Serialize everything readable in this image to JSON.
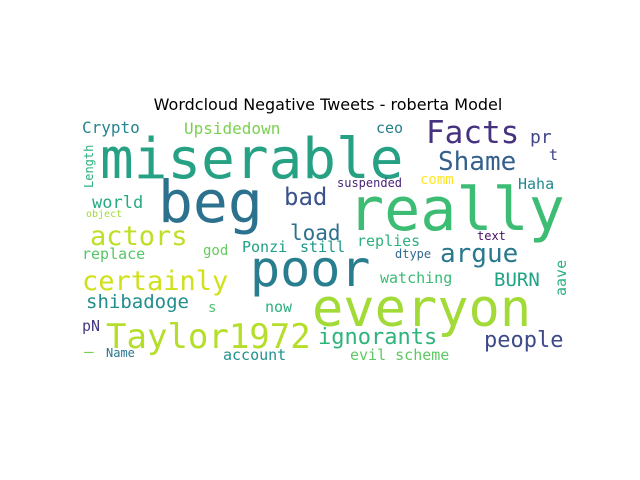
{
  "chart_data": {
    "type": "wordcloud",
    "title": "Wordcloud Negative Tweets - roberta Model",
    "colormap": "viridis",
    "words": [
      {
        "text": "miserable",
        "color": "#26a184"
      },
      {
        "text": "beg",
        "color": "#2c728e"
      },
      {
        "text": "really",
        "color": "#3dbc74"
      },
      {
        "text": "poor",
        "color": "#287d8e"
      },
      {
        "text": "everyon",
        "color": "#a2da37"
      },
      {
        "text": "Taylor1972",
        "color": "#b5de2b"
      },
      {
        "text": "Facts",
        "color": "#46327e"
      },
      {
        "text": "Shame",
        "color": "#35608d"
      },
      {
        "text": "argue",
        "color": "#2a788e"
      },
      {
        "text": "actors",
        "color": "#bddf26"
      },
      {
        "text": "certainly",
        "color": "#d0e11c"
      },
      {
        "text": "bad",
        "color": "#3b528b"
      },
      {
        "text": "load",
        "color": "#2c718e"
      },
      {
        "text": "ignorants",
        "color": "#2fb47c"
      },
      {
        "text": "people",
        "color": "#3e4989"
      },
      {
        "text": "shibadoge",
        "color": "#228d8d"
      },
      {
        "text": "BURN",
        "color": "#20a386"
      },
      {
        "text": "Crypto",
        "color": "#25848e"
      },
      {
        "text": "Upsidedown",
        "color": "#7ad151"
      },
      {
        "text": "ceo",
        "color": "#277f8e"
      },
      {
        "text": "pr",
        "color": "#3f4788"
      },
      {
        "text": "t",
        "color": "#414487"
      },
      {
        "text": "Haha",
        "color": "#23888e"
      },
      {
        "text": "comm",
        "color": "#fde725"
      },
      {
        "text": "suspended",
        "color": "#482576"
      },
      {
        "text": "world",
        "color": "#25ab82"
      },
      {
        "text": "replies",
        "color": "#2db27d"
      },
      {
        "text": "text",
        "color": "#471063"
      },
      {
        "text": "god",
        "color": "#65cb5e"
      },
      {
        "text": "Ponzi",
        "color": "#1fa088"
      },
      {
        "text": "still",
        "color": "#1f968b"
      },
      {
        "text": "replace",
        "color": "#56c667"
      },
      {
        "text": "watching",
        "color": "#3aba76"
      },
      {
        "text": "aave",
        "color": "#2ab07f"
      },
      {
        "text": "Length",
        "color": "#2db27d"
      },
      {
        "text": "object",
        "color": "#a0da39"
      },
      {
        "text": "s",
        "color": "#4ec36b"
      },
      {
        "text": "now",
        "color": "#2ab07f"
      },
      {
        "text": "pN",
        "color": "#443983"
      },
      {
        "text": "dtype",
        "color": "#31688e"
      },
      {
        "text": "account",
        "color": "#21918c"
      },
      {
        "text": "evil scheme",
        "color": "#5ec962"
      },
      {
        "text": "Name",
        "color": "#2a788e"
      },
      {
        "text": "—",
        "color": "#7ad151"
      }
    ]
  }
}
